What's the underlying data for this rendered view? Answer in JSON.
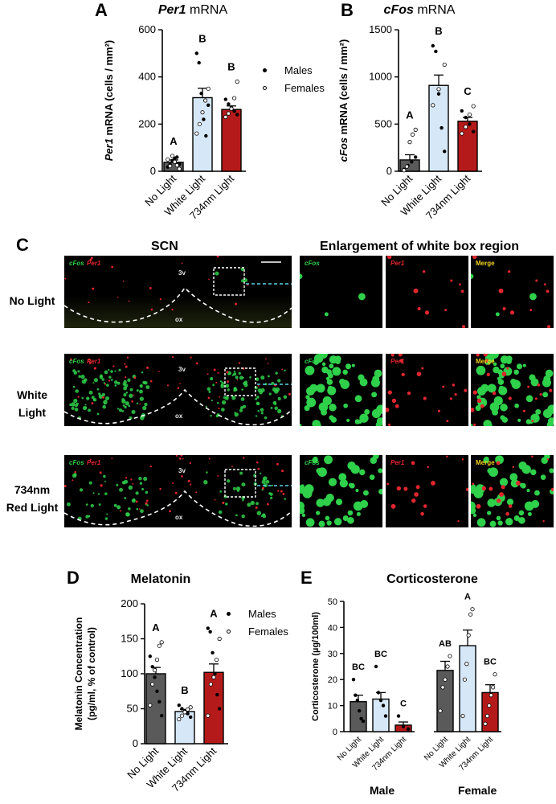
{
  "panel_labels": {
    "a": "A",
    "b": "B",
    "c": "C",
    "d": "D",
    "e": "E"
  },
  "legend": {
    "males": "Males",
    "females": "Females"
  },
  "panel_c": {
    "left_title": "SCN",
    "right_title": "Enlargement of white box region",
    "rows": [
      {
        "label_line1": "No Light",
        "label_line2": ""
      },
      {
        "label_line1": "White",
        "label_line2": "Light"
      },
      {
        "label_line1": "734nm",
        "label_line2": "Red Light"
      }
    ],
    "channel_cfos": "cFos",
    "channel_per1": "Per1",
    "channel_merge": "Merge",
    "landmark_3v": "3v",
    "landmark_ox": "ox"
  },
  "panel_e_groups": {
    "male": "Male",
    "female": "Female"
  },
  "chart_data": [
    {
      "panel": "A",
      "type": "bar",
      "title_italic": "Per1",
      "title_rest": " mRNA",
      "ylabel_italic": "Per1",
      "ylabel_rest": " mRNA (cells / mm²)",
      "categories": [
        "No Light",
        "White Light",
        "734nm Light"
      ],
      "values": [
        38,
        312,
        262
      ],
      "errors": [
        10,
        40,
        15
      ],
      "ylim": [
        0,
        600
      ],
      "yticks": [
        0,
        200,
        400,
        600
      ],
      "sig_letters": [
        "A",
        "B",
        "B"
      ],
      "colors": [
        "#5a5a5a",
        "#d6e8f8",
        "#b51a1a"
      ],
      "points_males": [
        [
          18,
          28,
          45,
          55,
          60,
          30
        ],
        [
          500,
          460,
          330,
          220,
          150,
          280
        ],
        [
          305,
          285,
          270,
          255,
          240
        ]
      ],
      "points_females": [
        [
          10,
          25,
          40,
          65,
          22,
          50
        ],
        [
          350,
          300,
          250,
          200,
          160
        ],
        [
          380,
          310,
          265,
          245,
          230
        ]
      ]
    },
    {
      "panel": "B",
      "type": "bar",
      "title_italic": "cFos",
      "title_rest": " mRNA",
      "ylabel_italic": "cFos",
      "ylabel_rest": " mRNA (cells / mm²)",
      "categories": [
        "No Light",
        "White Light",
        "734nm Light"
      ],
      "values": [
        120,
        910,
        530
      ],
      "errors": [
        55,
        110,
        40
      ],
      "ylim": [
        0,
        1500
      ],
      "yticks": [
        0,
        500,
        1000,
        1500
      ],
      "sig_letters": [
        "A",
        "B",
        "C"
      ],
      "colors": [
        "#5a5a5a",
        "#d6e8f8",
        "#b51a1a"
      ],
      "points_males": [
        [
          20,
          60,
          100,
          150
        ],
        [
          1330,
          1270,
          820,
          460,
          210
        ],
        [
          640,
          570,
          500,
          420
        ]
      ],
      "points_females": [
        [
          440,
          390,
          310,
          50,
          10
        ],
        [
          1130,
          870,
          700
        ],
        [
          690,
          600,
          470,
          400
        ]
      ]
    },
    {
      "panel": "D",
      "type": "bar",
      "title": "Melatonin",
      "ylabel_line1": "Melatonin Concentration",
      "ylabel_line2": "(pg/ml, % of control)",
      "categories": [
        "No Light",
        "White Light",
        "734nm Light"
      ],
      "values": [
        100,
        46,
        102
      ],
      "errors": [
        9,
        3,
        12
      ],
      "ylim": [
        0,
        200
      ],
      "yticks": [
        0,
        50,
        100,
        150,
        200
      ],
      "sig_letters": [
        "A",
        "B",
        "A"
      ],
      "colors": [
        "#5a5a5a",
        "#d6e8f8",
        "#b51a1a"
      ],
      "points_males": [
        [
          125,
          110,
          95,
          75,
          60,
          40
        ],
        [
          55,
          50,
          47,
          43,
          38
        ],
        [
          165,
          160,
          130,
          100,
          70,
          50
        ]
      ],
      "points_females": [
        [
          145,
          140,
          120,
          105,
          85,
          55
        ],
        [
          52,
          49,
          45,
          40,
          35
        ],
        [
          150,
          120,
          95,
          85,
          40
        ]
      ]
    },
    {
      "panel": "E",
      "type": "bar",
      "title": "Corticosterone",
      "ylabel": "Corticosterone (µg/100ml)",
      "categories": [
        "No Light",
        "White Light",
        "734nm Light",
        "No Light",
        "White Light",
        "734nm Light"
      ],
      "values": [
        11.5,
        12.5,
        2.5,
        23.5,
        33,
        15
      ],
      "errors": [
        2.5,
        2.5,
        1.2,
        3.5,
        6,
        3
      ],
      "ylim": [
        0,
        50
      ],
      "yticks": [
        0,
        10,
        20,
        30,
        40,
        50
      ],
      "sig_letters": [
        "BC",
        "BC",
        "C",
        "AB",
        "A",
        "BC"
      ],
      "colors": [
        "#5a5a5a",
        "#d6e8f8",
        "#b51a1a",
        "#5a5a5a",
        "#d6e8f8",
        "#b51a1a"
      ],
      "points_males": [
        [
          20,
          14,
          12,
          8,
          5,
          4
        ],
        [
          25,
          15,
          12,
          10,
          6
        ],
        [
          6,
          2,
          1
        ],
        [],
        [],
        []
      ],
      "points_females": [
        [],
        [],
        [],
        [
          29,
          25,
          20,
          17,
          8
        ],
        [
          47,
          45,
          37,
          26,
          20,
          6
        ],
        [
          22,
          17,
          14,
          10,
          6,
          3
        ]
      ]
    }
  ]
}
